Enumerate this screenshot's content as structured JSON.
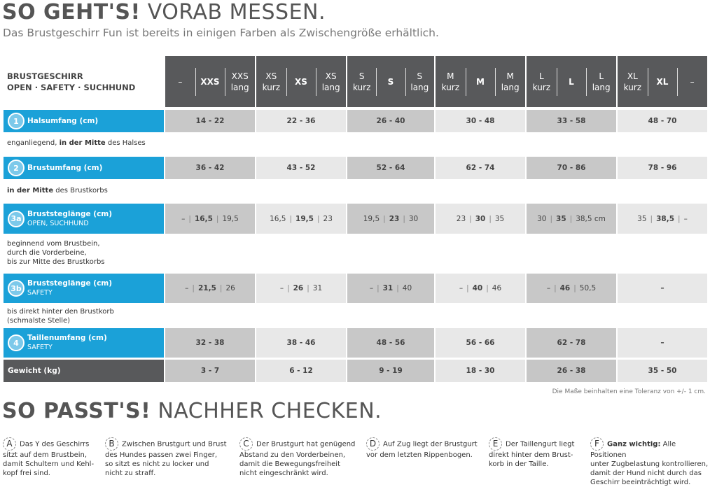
{
  "header": {
    "title_bold": "SO GEHT'S!",
    "title_rest": "VORAB MESSEN.",
    "subtitle": "Das Brustgeschirr Fun ist bereits in einigen Farben als Zwischengröße erhältlich."
  },
  "table": {
    "corner": [
      "BRUSTGESCHIRR",
      "OPEN · SAFETY · SUCHHUND"
    ],
    "sizes": [
      [
        [
          "–"
        ],
        [
          "XXS"
        ],
        [
          "XXS",
          "lang"
        ]
      ],
      [
        [
          "XS",
          "kurz"
        ],
        [
          "XS"
        ],
        [
          "XS",
          "lang"
        ]
      ],
      [
        [
          "S",
          "kurz"
        ],
        [
          "S"
        ],
        [
          "S",
          "lang"
        ]
      ],
      [
        [
          "M",
          "kurz"
        ],
        [
          "M"
        ],
        [
          "M",
          "lang"
        ]
      ],
      [
        [
          "L",
          "kurz"
        ],
        [
          "L"
        ],
        [
          "L",
          "lang"
        ]
      ],
      [
        [
          "XL",
          "kurz"
        ],
        [
          "XL"
        ],
        [
          "–"
        ]
      ]
    ],
    "rows": [
      {
        "badge": "1",
        "label": "Halsumfang (cm)",
        "cells": [
          "14 - 22",
          "22 - 36",
          "26 - 40",
          "30 - 48",
          "33 - 58",
          "48 - 70"
        ],
        "note": [
          [
            {
              "text": "enganliegend, "
            },
            {
              "text": "in der Mitte",
              "bold": true
            },
            {
              "text": " des Halses"
            }
          ]
        ]
      },
      {
        "badge": "2",
        "label": "Brustumfang (cm)",
        "cells": [
          "36 - 42",
          "43 - 52",
          "52 - 64",
          "62 - 74",
          "70 - 86",
          "78 - 96"
        ],
        "note": [
          [
            {
              "text": "in der Mitte",
              "bold": true
            },
            {
              "text": " des Brustkorbs"
            }
          ]
        ]
      },
      {
        "badge": "3a",
        "label": "Bruststeglänge (cm)",
        "sublabel": "OPEN, SUCHHUND",
        "cells": [
          [
            "–",
            "16,5",
            "19,5"
          ],
          [
            "16,5",
            "19,5",
            "23"
          ],
          [
            "19,5",
            "23",
            "30"
          ],
          [
            "23",
            "30",
            "35"
          ],
          [
            "30",
            "35",
            "38,5 cm"
          ],
          [
            "35",
            "38,5",
            "–"
          ]
        ],
        "note": [
          [
            {
              "text": "beginnend vom Brustbein,"
            }
          ],
          [
            {
              "text": "durch die Vorderbeine,"
            }
          ],
          [
            {
              "text": "bis zur Mitte des Brustkorbs"
            }
          ]
        ]
      },
      {
        "badge": "3b",
        "label": "Bruststeglänge (cm)",
        "sublabel": "SAFETY",
        "cells": [
          [
            "–",
            "21,5",
            "26"
          ],
          [
            "–",
            "26",
            "31"
          ],
          [
            "–",
            "31",
            "40"
          ],
          [
            "–",
            "40",
            "46"
          ],
          [
            "–",
            "46",
            "50,5"
          ],
          "–"
        ],
        "note": [
          [
            {
              "text": "bis direkt hinter den Brustkorb"
            }
          ],
          [
            {
              "text": "(schmalste Stelle)"
            }
          ]
        ]
      },
      {
        "badge": "4",
        "label": "Taillenumfang (cm)",
        "sublabel": "SAFETY",
        "cells": [
          "32 - 38",
          "38 - 46",
          "48 - 56",
          "56 - 66",
          "62 - 78",
          "–"
        ]
      },
      {
        "label": "Gewicht (kg)",
        "cells": [
          "3 - 7",
          "6 - 12",
          "9 - 19",
          "18 - 30",
          "26 - 38",
          "35 - 50"
        ]
      }
    ],
    "footnote": "Die Maße beinhalten eine Toleranz von +/- 1 cm."
  },
  "section2": {
    "title_bold": "SO PASST'S!",
    "title_rest": "NACHHER CHECKEN.",
    "tips": [
      {
        "letter": "A",
        "lines": [
          [
            {
              "text": "Das Y des Geschirrs"
            }
          ],
          [
            {
              "text": "sitzt auf dem Brustbein,"
            }
          ],
          [
            {
              "text": "damit Schultern und Kehl-"
            }
          ],
          [
            {
              "text": "kopf frei sind."
            }
          ]
        ]
      },
      {
        "letter": "B",
        "lines": [
          [
            {
              "text": "Zwischen Brustgurt und Brust"
            }
          ],
          [
            {
              "text": "des Hundes passen zwei Finger,"
            }
          ],
          [
            {
              "text": "so sitzt es nicht zu locker und"
            }
          ],
          [
            {
              "text": "nicht zu straff."
            }
          ]
        ]
      },
      {
        "letter": "C",
        "lines": [
          [
            {
              "text": "Der Brustgurt hat genügend"
            }
          ],
          [
            {
              "text": "Abstand zu den Vorderbeinen,"
            }
          ],
          [
            {
              "text": "damit die Bewegungsfreiheit"
            }
          ],
          [
            {
              "text": "nicht eingeschränkt wird."
            }
          ]
        ]
      },
      {
        "letter": "D",
        "lines": [
          [
            {
              "text": "Auf Zug liegt der Brustgurt"
            }
          ],
          [
            {
              "text": "vor dem letzten Rippenbogen."
            }
          ]
        ]
      },
      {
        "letter": "E",
        "lines": [
          [
            {
              "text": "Der Taillengurt liegt"
            }
          ],
          [
            {
              "text": "direkt hinter dem Brust-"
            }
          ],
          [
            {
              "text": "korb in der Taille."
            }
          ]
        ]
      },
      {
        "letter": "F",
        "lines": [
          [
            {
              "text": "Ganz wichtig:",
              "bold": true
            },
            {
              "text": " Alle Positionen"
            }
          ],
          [
            {
              "text": "unter Zugbelastung kontrollieren,"
            }
          ],
          [
            {
              "text": "damit der Hund nicht durch das"
            }
          ],
          [
            {
              "text": "Geschirr beeinträchtigt wird."
            }
          ]
        ]
      }
    ]
  }
}
